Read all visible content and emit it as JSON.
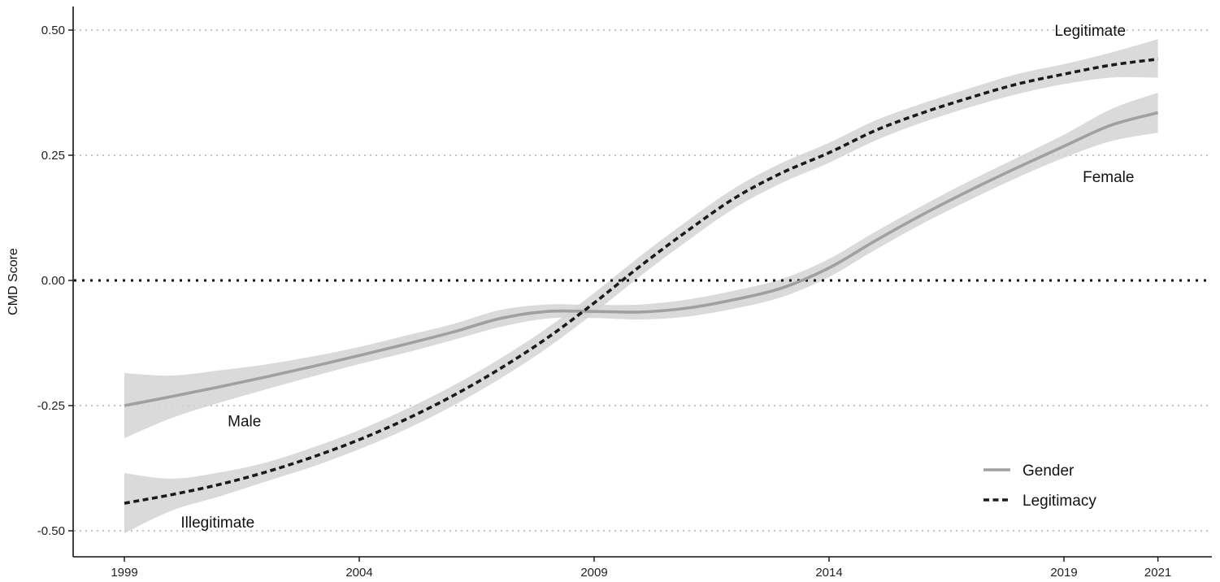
{
  "chart_data": {
    "type": "line",
    "title": "",
    "xlabel": "",
    "ylabel": "CMD Score",
    "xlim": [
      1998.0,
      2023.0
    ],
    "ylim": [
      -0.545,
      0.545
    ],
    "x_ticks": [
      1999,
      2004,
      2009,
      2014,
      2019,
      2021
    ],
    "x_tick_labels": [
      "1999",
      "2004",
      "2009",
      "2014",
      "2019",
      "2021"
    ],
    "y_ticks": [
      0.5,
      0.25,
      0.0,
      -0.25,
      -0.5
    ],
    "y_tick_labels": [
      "0.50",
      "0.25",
      "0.00",
      "-0.25",
      "-0.50"
    ],
    "reference_line": {
      "y": 0.0,
      "style": "dotted"
    },
    "grid": {
      "horizontal": true,
      "style": "dotted"
    },
    "legend": {
      "position": "bottom-right"
    },
    "series": [
      {
        "name": "Gender",
        "style": "solid",
        "color": "#a0a0a0",
        "x": [
          1999,
          2000,
          2001,
          2002,
          2003,
          2004,
          2005,
          2006,
          2007,
          2008,
          2009,
          2010,
          2011,
          2012,
          2013,
          2014,
          2015,
          2016,
          2017,
          2018,
          2019,
          2020,
          2021
        ],
        "y": [
          -0.25,
          -0.232,
          -0.213,
          -0.193,
          -0.172,
          -0.15,
          -0.127,
          -0.103,
          -0.076,
          -0.062,
          -0.062,
          -0.063,
          -0.055,
          -0.038,
          -0.015,
          0.025,
          0.08,
          0.132,
          0.18,
          0.225,
          0.268,
          0.31,
          0.335
        ],
        "lower": [
          -0.315,
          -0.275,
          -0.245,
          -0.218,
          -0.192,
          -0.167,
          -0.144,
          -0.119,
          -0.093,
          -0.076,
          -0.075,
          -0.078,
          -0.072,
          -0.056,
          -0.033,
          0.007,
          0.062,
          0.114,
          0.161,
          0.205,
          0.245,
          0.278,
          0.295
        ],
        "upper": [
          -0.185,
          -0.19,
          -0.18,
          -0.168,
          -0.152,
          -0.133,
          -0.11,
          -0.087,
          -0.059,
          -0.048,
          -0.049,
          -0.048,
          -0.038,
          -0.02,
          0.003,
          0.043,
          0.098,
          0.15,
          0.199,
          0.245,
          0.291,
          0.342,
          0.375
        ]
      },
      {
        "name": "Legitimacy",
        "style": "dashed",
        "color": "#1a1a1a",
        "x": [
          1999,
          2000,
          2001,
          2002,
          2003,
          2004,
          2005,
          2006,
          2007,
          2008,
          2009,
          2010,
          2011,
          2012,
          2013,
          2014,
          2015,
          2016,
          2017,
          2018,
          2019,
          2020,
          2021
        ],
        "y": [
          -0.445,
          -0.428,
          -0.408,
          -0.383,
          -0.353,
          -0.318,
          -0.277,
          -0.23,
          -0.176,
          -0.115,
          -0.045,
          0.03,
          0.1,
          0.165,
          0.215,
          0.255,
          0.3,
          0.335,
          0.365,
          0.392,
          0.412,
          0.43,
          0.442
        ],
        "lower": [
          -0.505,
          -0.46,
          -0.432,
          -0.402,
          -0.372,
          -0.337,
          -0.297,
          -0.25,
          -0.196,
          -0.135,
          -0.065,
          0.01,
          0.08,
          0.145,
          0.195,
          0.235,
          0.28,
          0.316,
          0.346,
          0.372,
          0.392,
          0.405,
          0.405
        ],
        "upper": [
          -0.385,
          -0.396,
          -0.384,
          -0.364,
          -0.334,
          -0.299,
          -0.257,
          -0.21,
          -0.156,
          -0.095,
          -0.025,
          0.05,
          0.12,
          0.185,
          0.235,
          0.275,
          0.32,
          0.354,
          0.384,
          0.412,
          0.432,
          0.455,
          0.482
        ]
      }
    ],
    "annotations": [
      {
        "text": "Legitimate",
        "x": 2018.8,
        "y": 0.5
      },
      {
        "text": "Female",
        "x": 2019.4,
        "y": 0.208
      },
      {
        "text": "Male",
        "x": 2001.2,
        "y": -0.28
      },
      {
        "text": "Illegitimate",
        "x": 2000.2,
        "y": -0.482
      }
    ]
  }
}
